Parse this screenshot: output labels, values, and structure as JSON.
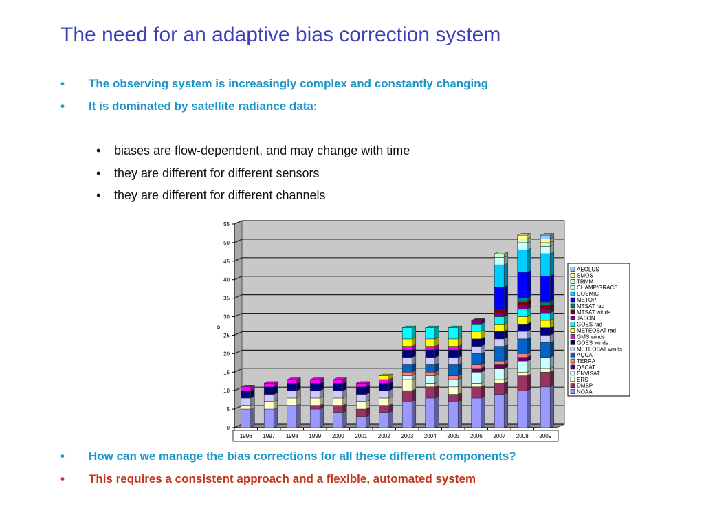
{
  "title": "The need for an adaptive bias correction system",
  "bullets_top": [
    "The observing system is increasingly complex and constantly changing",
    "It is dominated by satellite radiance data:"
  ],
  "sub_bullets": [
    "biases are flow-dependent, and may change with time",
    "they are different for different sensors",
    "they are different for different channels"
  ],
  "bullets_bottom": [
    "How can we manage the bias corrections for all these different components?",
    "This requires a consistent approach and a flexible, automated system"
  ],
  "bullet_glyph": "•",
  "colors": {
    "title": "#3b3fb5",
    "bullet_blue": "#1a96c8",
    "bullet_red": "#c0361c",
    "plot_background": "#c8c8c8"
  },
  "chart_data": {
    "type": "bar",
    "stacked": true,
    "three_d": true,
    "ylabel": "s",
    "ylim": [
      0,
      55
    ],
    "yticks": [
      0,
      5,
      10,
      15,
      20,
      25,
      30,
      35,
      40,
      45,
      50,
      55
    ],
    "grid": true,
    "legend_position": "right",
    "categories": [
      "1996",
      "1997",
      "1998",
      "1999",
      "2000",
      "2001",
      "2002",
      "2003",
      "2004",
      "2005",
      "2006",
      "2007",
      "2008",
      "2009"
    ],
    "series": [
      {
        "name": "NOAA",
        "color": "#9999ff",
        "values": [
          5,
          5,
          6,
          5,
          4,
          3,
          4,
          7,
          8,
          7,
          8,
          9,
          10,
          11
        ]
      },
      {
        "name": "DMSP",
        "color": "#993366",
        "values": [
          0,
          0,
          0,
          1,
          2,
          2,
          2,
          3,
          3,
          2,
          3,
          3,
          4,
          4
        ]
      },
      {
        "name": "ERS",
        "color": "#ffffcc",
        "values": [
          1,
          2,
          2,
          2,
          2,
          2,
          2,
          3,
          1,
          2,
          1,
          1,
          1,
          1
        ]
      },
      {
        "name": "ENVISAT",
        "color": "#ccffff",
        "values": [
          0,
          0,
          0,
          0,
          0,
          0,
          0,
          1,
          2,
          2,
          3,
          3,
          3,
          3
        ]
      },
      {
        "name": "QSCAT",
        "color": "#660066",
        "values": [
          0,
          0,
          0,
          0,
          0,
          0,
          0,
          0,
          0,
          0,
          1,
          1,
          1,
          0
        ]
      },
      {
        "name": "TERRA",
        "color": "#ff8080",
        "values": [
          0,
          0,
          0,
          0,
          0,
          0,
          0,
          1,
          1,
          1,
          1,
          1,
          1,
          0
        ]
      },
      {
        "name": "AQUA",
        "color": "#0066cc",
        "values": [
          0,
          0,
          0,
          0,
          0,
          0,
          0,
          2,
          2,
          3,
          3,
          4,
          4,
          4
        ]
      },
      {
        "name": "METEOSAT winds",
        "color": "#ccccff",
        "values": [
          2,
          2,
          2,
          2,
          2,
          2,
          2,
          2,
          2,
          2,
          2,
          2,
          2,
          2
        ]
      },
      {
        "name": "GOES winds",
        "color": "#000080",
        "values": [
          2,
          2,
          2,
          2,
          2,
          2,
          2,
          2,
          2,
          2,
          2,
          2,
          2,
          2
        ]
      },
      {
        "name": "GMS winds",
        "color": "#ff00ff",
        "values": [
          1,
          1,
          1,
          1,
          1,
          1,
          1,
          1,
          1,
          1,
          0,
          0,
          0,
          0
        ]
      },
      {
        "name": "METEOSAT rad",
        "color": "#ffff00",
        "values": [
          0,
          0,
          0,
          0,
          0,
          0,
          1,
          2,
          2,
          2,
          2,
          2,
          2,
          2
        ]
      },
      {
        "name": "GOES rad",
        "color": "#00ffff",
        "values": [
          0,
          0,
          0,
          0,
          0,
          0,
          0,
          3,
          3,
          3,
          2,
          2,
          2,
          2
        ]
      },
      {
        "name": "JASON",
        "color": "#800080",
        "values": [
          0,
          0,
          0,
          0,
          0,
          0,
          0,
          0,
          0,
          0,
          1,
          1,
          1,
          1
        ]
      },
      {
        "name": "MTSAT winds",
        "color": "#800000",
        "values": [
          0,
          0,
          0,
          0,
          0,
          0,
          0,
          0,
          0,
          0,
          0,
          1,
          1,
          1
        ]
      },
      {
        "name": "MTSAT rad",
        "color": "#008080",
        "values": [
          0,
          0,
          0,
          0,
          0,
          0,
          0,
          0,
          0,
          0,
          0,
          0,
          1,
          1
        ]
      },
      {
        "name": "METOP",
        "color": "#0000ff",
        "values": [
          0,
          0,
          0,
          0,
          0,
          0,
          0,
          0,
          0,
          0,
          0,
          6,
          7,
          7
        ]
      },
      {
        "name": "COSMIC",
        "color": "#00ccff",
        "values": [
          0,
          0,
          0,
          0,
          0,
          0,
          0,
          0,
          0,
          0,
          0,
          6,
          6,
          6
        ]
      },
      {
        "name": "CHAMP/GRACE",
        "color": "#ccffff",
        "values": [
          0,
          0,
          0,
          0,
          0,
          0,
          0,
          0,
          0,
          0,
          0,
          2,
          2,
          2
        ]
      },
      {
        "name": "TRMM",
        "color": "#ccffcc",
        "values": [
          0,
          0,
          0,
          0,
          0,
          0,
          0,
          0,
          0,
          0,
          0,
          1,
          1,
          1
        ]
      },
      {
        "name": "SMOS",
        "color": "#ffff99",
        "values": [
          0,
          0,
          0,
          0,
          0,
          0,
          0,
          0,
          0,
          0,
          0,
          0,
          1,
          1
        ]
      },
      {
        "name": "AEOLUS",
        "color": "#99ccff",
        "values": [
          0,
          0,
          0,
          0,
          0,
          0,
          0,
          0,
          0,
          0,
          0,
          0,
          0,
          1
        ]
      }
    ]
  }
}
